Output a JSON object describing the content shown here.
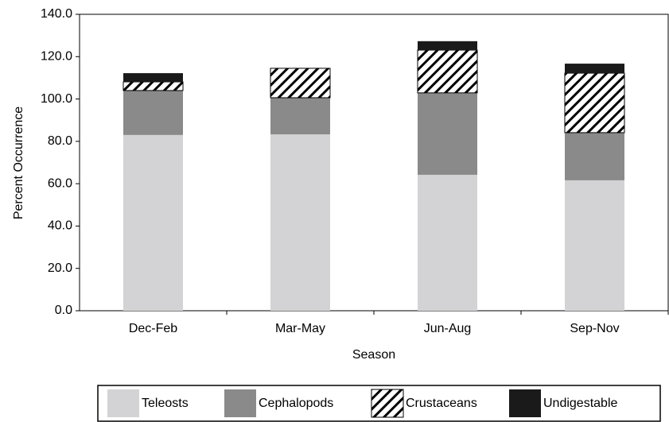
{
  "chart_data": {
    "type": "bar",
    "stacked": true,
    "xlabel": "Season",
    "ylabel": "Percent Occurrence",
    "categories": [
      "Dec-Feb",
      "Mar-May",
      "Jun-Aug",
      "Sep-Nov"
    ],
    "series": [
      {
        "name": "Teleosts",
        "color": "#d3d3d5",
        "values": [
          83.0,
          83.3,
          64.2,
          61.6
        ]
      },
      {
        "name": "Cephalopods",
        "color": "#8a8a8a",
        "values": [
          21.0,
          17.3,
          38.7,
          22.5
        ]
      },
      {
        "name": "Crustaceans",
        "color": "#ffffff",
        "pattern": "hatch",
        "values": [
          4.1,
          13.9,
          20.2,
          28.1
        ]
      },
      {
        "name": "Undigestable",
        "color": "#1a1a1a",
        "values": [
          4.1,
          0,
          4.2,
          4.5
        ]
      }
    ],
    "ylim": [
      0,
      140
    ],
    "yticks": [
      {
        "value": 0,
        "label": "0.0"
      },
      {
        "value": 20,
        "label": "20.0"
      },
      {
        "value": 40,
        "label": "40.0"
      },
      {
        "value": 60,
        "label": "60.0"
      },
      {
        "value": 80,
        "label": "80.0"
      },
      {
        "value": 100,
        "label": "100.0"
      },
      {
        "value": 120,
        "label": "120.0"
      },
      {
        "value": 140,
        "label": "140.0"
      }
    ],
    "legend": "bottom"
  }
}
